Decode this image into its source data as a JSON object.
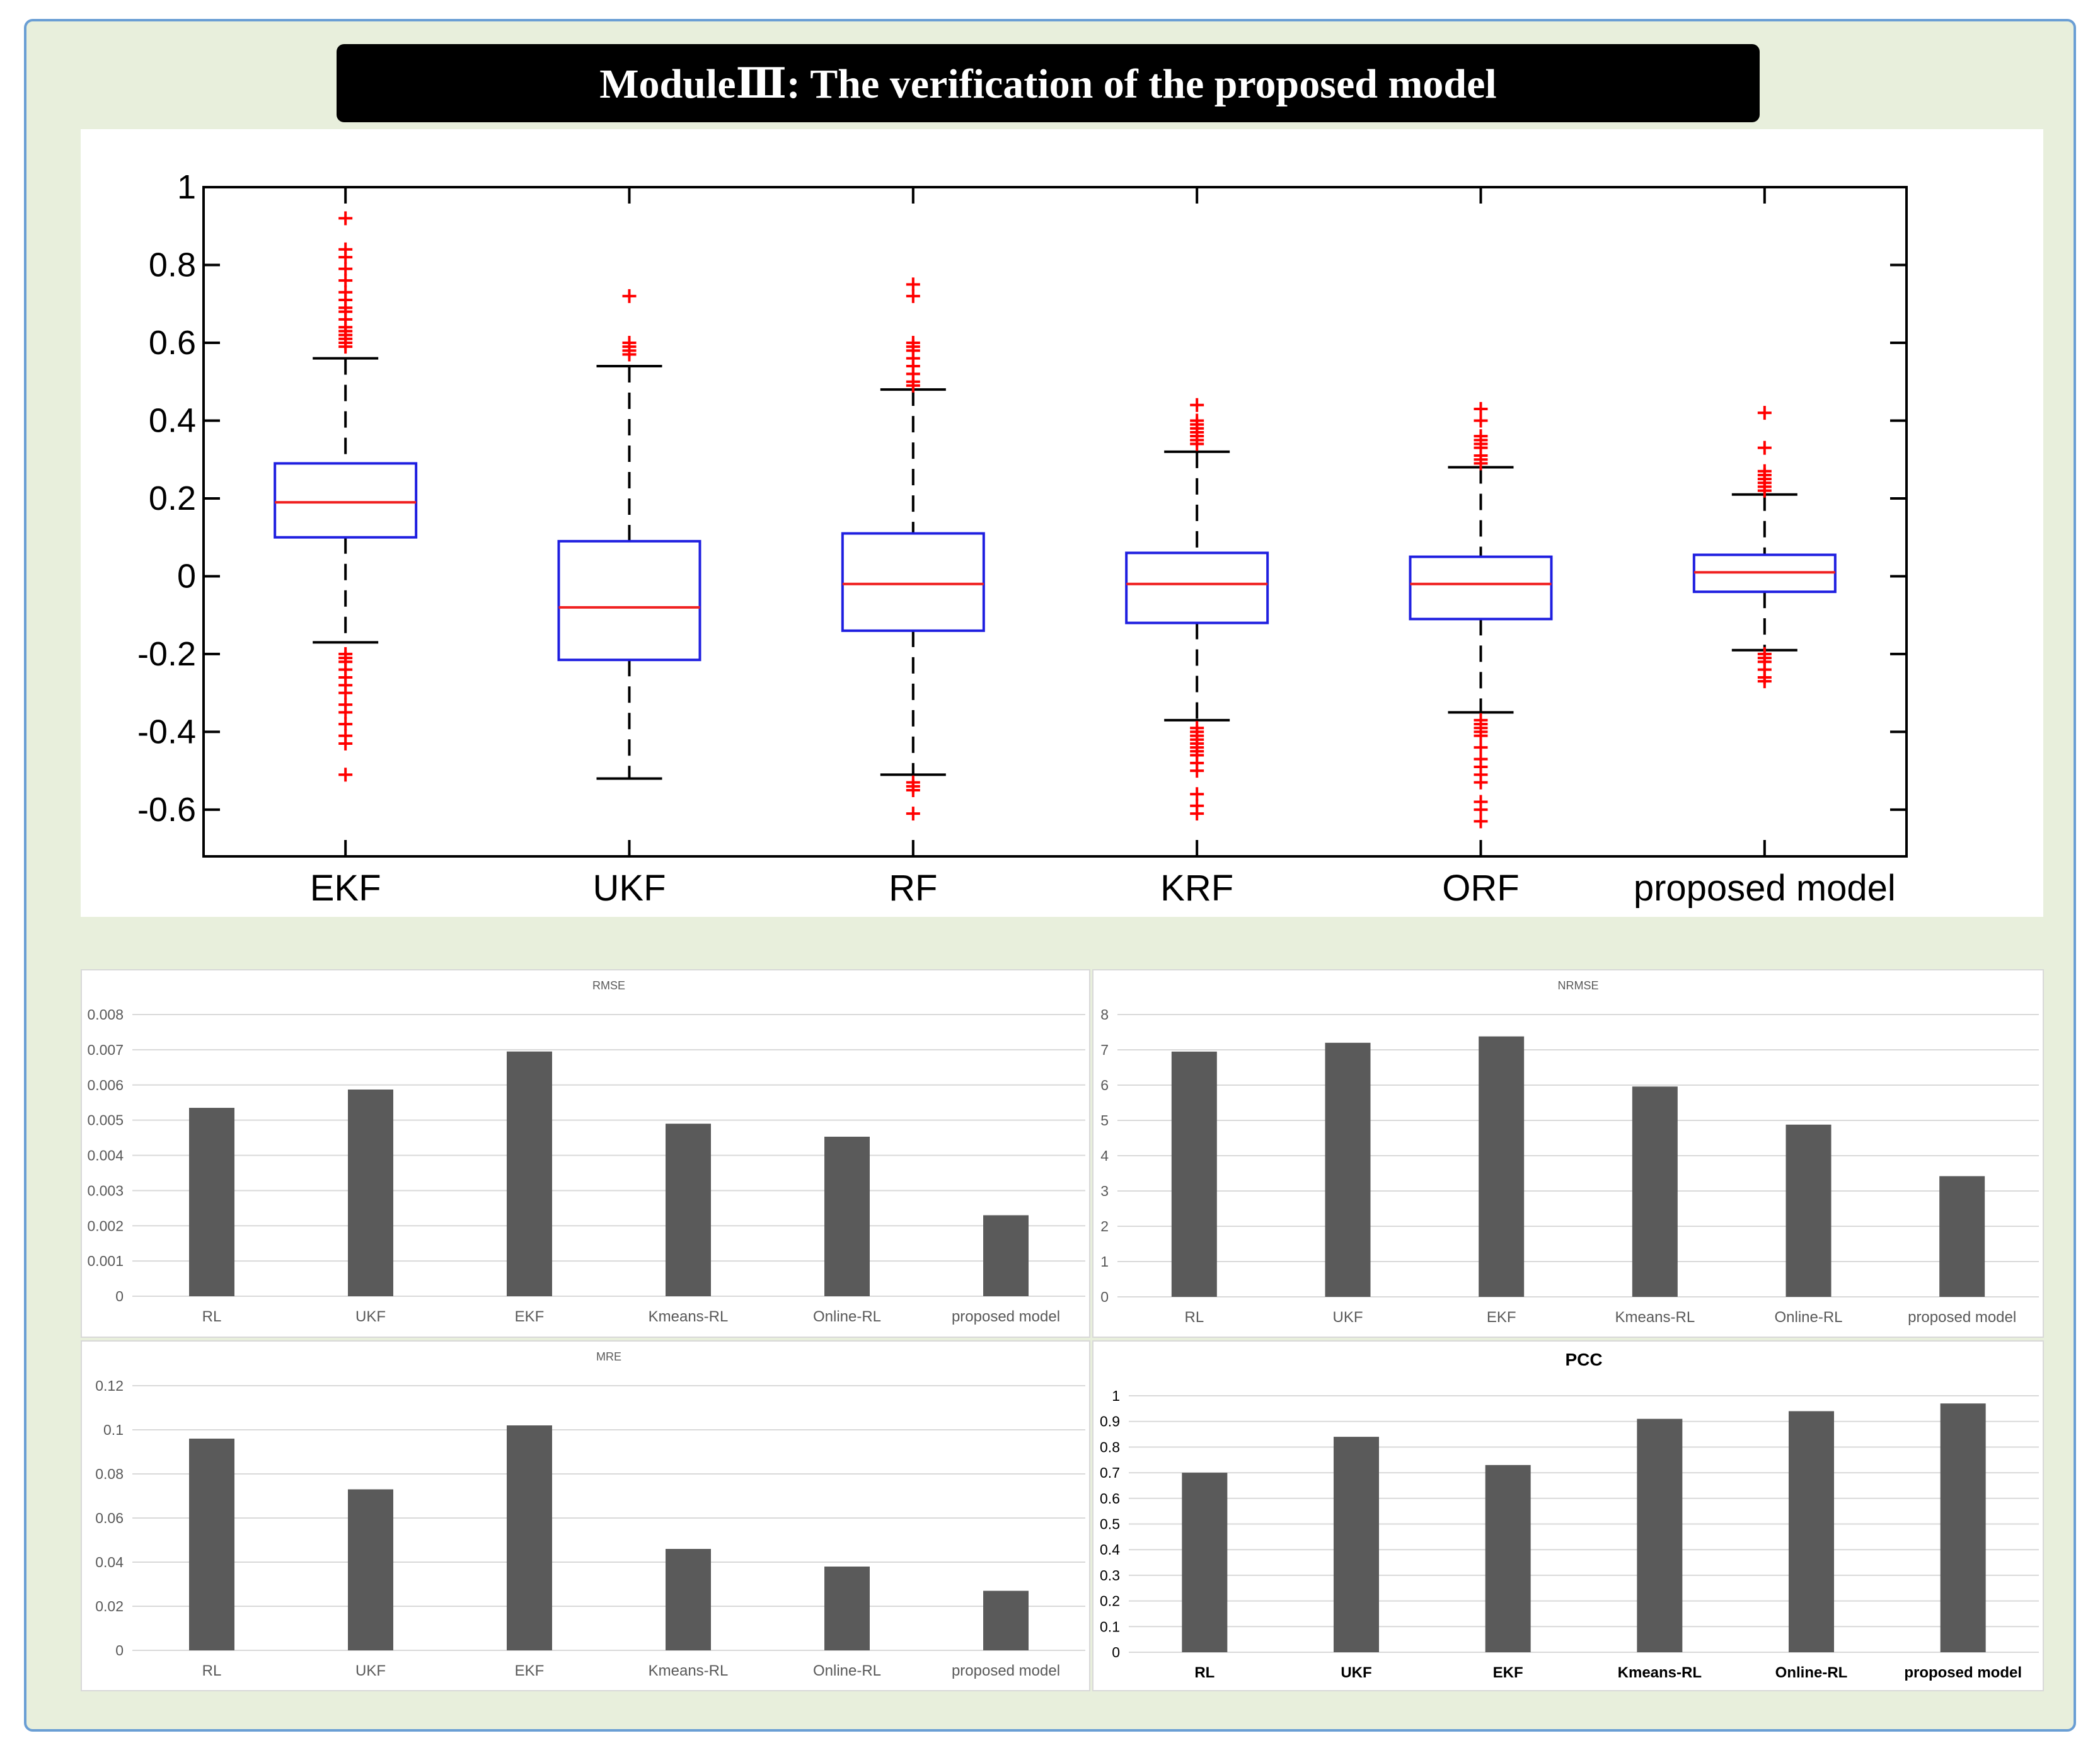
{
  "title": "ModuleⅢ: The verification of the proposed model",
  "colors": {
    "frame_bg": "#e8efdc",
    "frame_border": "#6a9ed4",
    "box_edge": "#1f1fe0",
    "median": "#f02020",
    "outlier": "#ff0000",
    "bar": "#5a5a5a",
    "grid": "#d9d9d9",
    "text": "#595959"
  },
  "chart_data": [
    {
      "id": "boxplot",
      "type": "box",
      "title": "",
      "categories": [
        "EKF",
        "UKF",
        "RF",
        "KRF",
        "ORF",
        "proposed model"
      ],
      "ylim": [
        -0.72,
        1.0
      ],
      "yticks": [
        "1",
        "0.8",
        "0.6",
        "0.4",
        "0.2",
        "0",
        "-0.2",
        "-0.4",
        "-0.6"
      ],
      "ytick_values": [
        1,
        0.8,
        0.6,
        0.4,
        0.2,
        0,
        -0.2,
        -0.4,
        -0.6
      ],
      "boxes": [
        {
          "q1": 0.1,
          "median": 0.19,
          "q3": 0.29,
          "whisker_low": -0.17,
          "whisker_high": 0.56,
          "outliers": [
            0.92,
            0.84,
            0.82,
            0.79,
            0.76,
            0.73,
            0.71,
            0.69,
            0.68,
            0.66,
            0.64,
            0.63,
            0.62,
            0.61,
            0.6,
            0.59,
            -0.2,
            -0.21,
            -0.22,
            -0.24,
            -0.26,
            -0.28,
            -0.3,
            -0.33,
            -0.35,
            -0.38,
            -0.41,
            -0.43,
            -0.51
          ]
        },
        {
          "q1": -0.215,
          "median": -0.08,
          "q3": 0.09,
          "whisker_low": -0.52,
          "whisker_high": 0.54,
          "outliers": [
            0.72,
            0.6,
            0.59,
            0.58,
            0.57
          ]
        },
        {
          "q1": -0.14,
          "median": -0.02,
          "q3": 0.11,
          "whisker_low": -0.51,
          "whisker_high": 0.48,
          "outliers": [
            0.75,
            0.72,
            0.6,
            0.59,
            0.58,
            0.56,
            0.54,
            0.52,
            0.5,
            0.49,
            -0.53,
            -0.54,
            -0.55,
            -0.61
          ]
        },
        {
          "q1": -0.12,
          "median": -0.02,
          "q3": 0.06,
          "whisker_low": -0.37,
          "whisker_high": 0.32,
          "outliers": [
            0.44,
            0.4,
            0.39,
            0.38,
            0.37,
            0.36,
            0.35,
            0.34,
            -0.39,
            -0.4,
            -0.41,
            -0.42,
            -0.43,
            -0.44,
            -0.45,
            -0.46,
            -0.48,
            -0.5,
            -0.56,
            -0.59,
            -0.61
          ]
        },
        {
          "q1": -0.11,
          "median": -0.02,
          "q3": 0.05,
          "whisker_low": -0.35,
          "whisker_high": 0.28,
          "outliers": [
            0.43,
            0.4,
            0.36,
            0.35,
            0.34,
            0.33,
            0.31,
            0.3,
            0.29,
            -0.37,
            -0.38,
            -0.39,
            -0.4,
            -0.41,
            -0.44,
            -0.47,
            -0.49,
            -0.51,
            -0.53,
            -0.58,
            -0.6,
            -0.63
          ]
        },
        {
          "q1": -0.04,
          "median": 0.01,
          "q3": 0.055,
          "whisker_low": -0.19,
          "whisker_high": 0.21,
          "outliers": [
            0.42,
            0.33,
            0.27,
            0.26,
            0.25,
            0.24,
            0.23,
            0.22,
            -0.2,
            -0.21,
            -0.22,
            -0.24,
            -0.26,
            -0.27
          ]
        }
      ]
    },
    {
      "id": "rmse",
      "type": "bar",
      "title": "RMSE",
      "categories": [
        "RL",
        "UKF",
        "EKF",
        "Kmeans-RL",
        "Online-RL",
        "proposed model"
      ],
      "values": [
        0.00535,
        0.00587,
        0.00695,
        0.0049,
        0.00453,
        0.0023
      ],
      "ylim": [
        0,
        0.008
      ],
      "yticks": [
        "0",
        "0.001",
        "0.002",
        "0.003",
        "0.004",
        "0.005",
        "0.006",
        "0.007",
        "0.008"
      ]
    },
    {
      "id": "nrmse",
      "type": "bar",
      "title": "NRMSE",
      "categories": [
        "RL",
        "UKF",
        "EKF",
        "Kmeans-RL",
        "Online-RL",
        "proposed model"
      ],
      "values": [
        6.95,
        7.2,
        7.38,
        5.96,
        4.88,
        3.42
      ],
      "ylim": [
        0,
        8
      ],
      "yticks": [
        "0",
        "1",
        "2",
        "3",
        "4",
        "5",
        "6",
        "7",
        "8"
      ]
    },
    {
      "id": "mre",
      "type": "bar",
      "title": "MRE",
      "categories": [
        "RL",
        "UKF",
        "EKF",
        "Kmeans-RL",
        "Online-RL",
        "proposed model"
      ],
      "values": [
        0.096,
        0.073,
        0.102,
        0.046,
        0.038,
        0.027
      ],
      "ylim": [
        0,
        0.12
      ],
      "yticks": [
        "0",
        "0.02",
        "0.04",
        "0.06",
        "0.08",
        "0.1",
        "0.12"
      ]
    },
    {
      "id": "pcc",
      "type": "bar",
      "title": "PCC",
      "categories": [
        "RL",
        "UKF",
        "EKF",
        "Kmeans-RL",
        "Online-RL",
        "proposed model"
      ],
      "values": [
        0.7,
        0.84,
        0.73,
        0.91,
        0.94,
        0.97
      ],
      "ylim": [
        0,
        1
      ],
      "yticks": [
        "0",
        "0.1",
        "0.2",
        "0.3",
        "0.4",
        "0.5",
        "0.6",
        "0.7",
        "0.8",
        "0.9",
        "1"
      ]
    }
  ]
}
